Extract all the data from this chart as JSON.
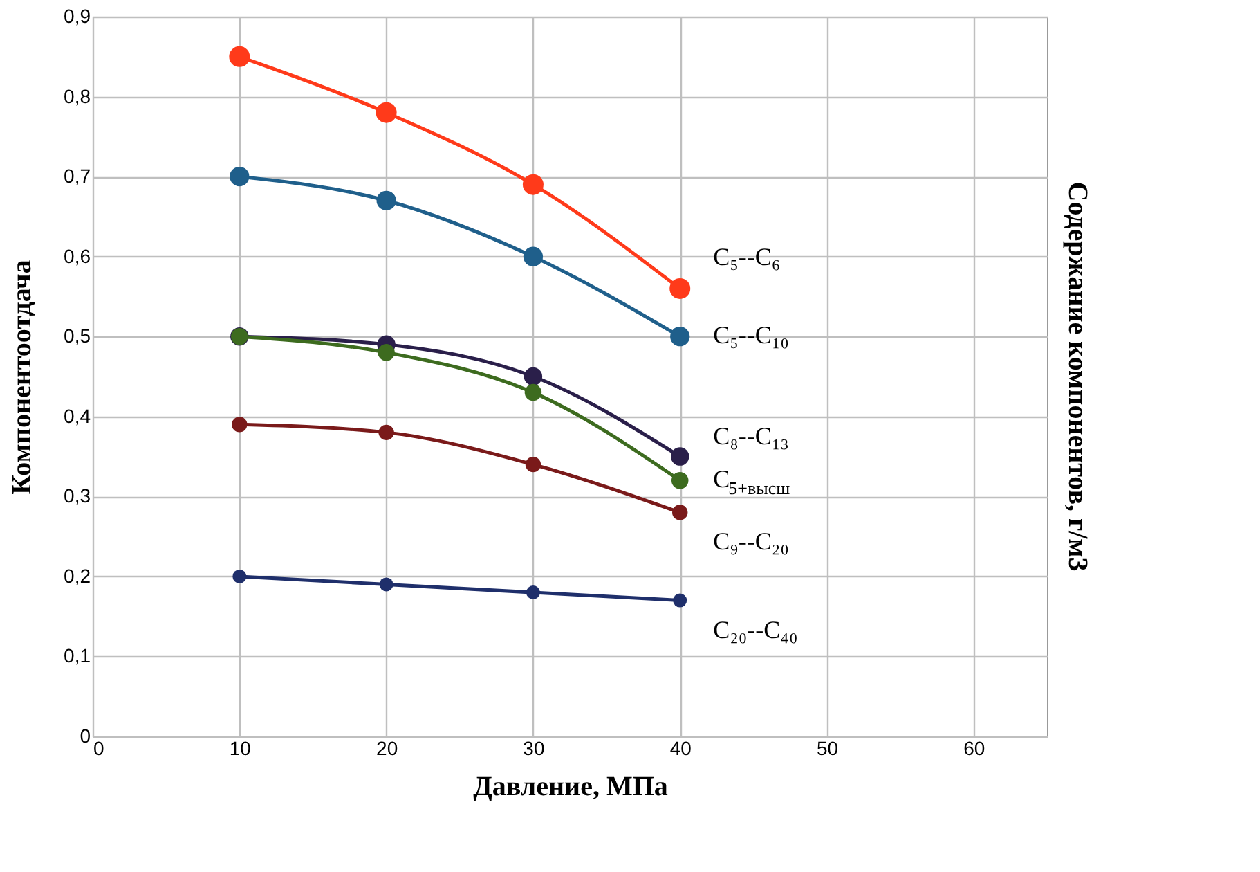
{
  "chart_data": {
    "type": "line",
    "xlabel": "Давление, МПа",
    "ylabel": "Компонентоотдача",
    "y2label": "Содержание компонентов,  г/м3",
    "x": [
      10,
      20,
      30,
      40
    ],
    "series": [
      {
        "name": "C₅--C₆",
        "color": "#ff3a1a",
        "values": [
          0.85,
          0.78,
          0.69,
          0.56
        ]
      },
      {
        "name": "C₅--C₁₀",
        "color": "#1f5f8b",
        "values": [
          0.7,
          0.67,
          0.6,
          0.5
        ]
      },
      {
        "name": "C₈--C₁₃",
        "color": "#2a1f4a",
        "values": [
          0.5,
          0.49,
          0.45,
          0.35
        ]
      },
      {
        "name": "C$_{5+высш}$",
        "color": "#3d6b1f",
        "values": [
          0.5,
          0.48,
          0.43,
          0.32
        ]
      },
      {
        "name": "C₉--C₂₀",
        "color": "#7a1a1a",
        "values": [
          0.39,
          0.38,
          0.34,
          0.28
        ]
      },
      {
        "name": "C₂₀--C₄₀",
        "color": "#1f2f6b",
        "values": [
          0.2,
          0.19,
          0.18,
          0.17
        ]
      }
    ],
    "xlim": [
      0,
      65
    ],
    "xticks": [
      0,
      10,
      20,
      30,
      40,
      50,
      60
    ],
    "ylim": [
      0,
      0.9
    ],
    "yticks": [
      {
        "value": 0,
        "label": "0"
      },
      {
        "value": 0.1,
        "label": "0,1"
      },
      {
        "value": 0.2,
        "label": "0,2"
      },
      {
        "value": 0.3,
        "label": "0,3"
      },
      {
        "value": 0.4,
        "label": "0,4"
      },
      {
        "value": 0.5,
        "label": "0,5"
      },
      {
        "value": 0.6,
        "label": "0,6"
      },
      {
        "value": 0.7,
        "label": "0,7"
      },
      {
        "value": 0.8,
        "label": "0,8"
      },
      {
        "value": 0.9,
        "label": "0,9"
      }
    ],
    "grid": true,
    "legend": false,
    "marker": "circle",
    "line_style": "solid"
  }
}
